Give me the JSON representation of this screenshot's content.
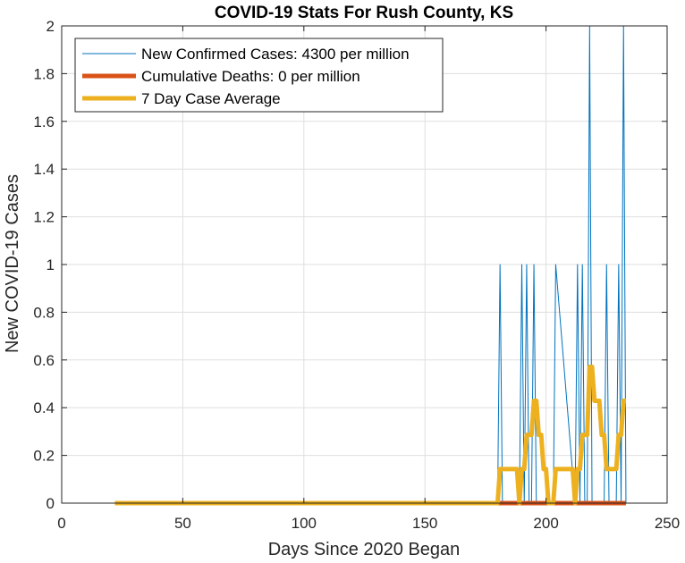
{
  "chart_data": {
    "type": "line",
    "title": "COVID-19 Stats For Rush County, KS",
    "xlabel": "Days Since 2020 Began",
    "ylabel": "New COVID-19 Cases",
    "xlim": [
      0,
      250
    ],
    "ylim": [
      0,
      2
    ],
    "xticks": [
      0,
      50,
      100,
      150,
      200,
      250
    ],
    "yticks": [
      0,
      0.2,
      0.4,
      0.6,
      0.8,
      1,
      1.2,
      1.4,
      1.6,
      1.8,
      2
    ],
    "grid": true,
    "legend_position": "top-left",
    "series": [
      {
        "name": "New Confirmed Cases: 4300 per million",
        "color": "#0072BD",
        "style": "thin",
        "x": [
          180,
          181,
          182,
          189,
          190,
          191,
          192,
          193,
          194,
          195,
          196,
          203,
          204,
          212,
          213,
          214,
          215,
          216,
          217,
          218,
          219,
          224,
          225,
          226,
          229,
          230,
          231,
          232,
          233
        ],
        "y": [
          0,
          1,
          0,
          0,
          1,
          0,
          1,
          0,
          0,
          1,
          0,
          0,
          1,
          0,
          1,
          0,
          1,
          0,
          0,
          2,
          0,
          0,
          1,
          0,
          0,
          1,
          0,
          2,
          0
        ]
      },
      {
        "name": "Cumulative Deaths: 0 per million",
        "color": "#D95319",
        "style": "thick",
        "x": [
          22,
          233
        ],
        "y": [
          0,
          0
        ]
      },
      {
        "name": "7 Day Case Average",
        "color": "#EDB120",
        "style": "thick",
        "x": [
          22,
          180,
          181,
          182,
          186,
          187,
          188,
          189,
          190,
          191,
          192,
          193,
          194,
          195,
          196,
          197,
          198,
          199,
          200,
          201,
          202,
          203,
          204,
          205,
          209,
          210,
          211,
          212,
          213,
          214,
          215,
          216,
          217,
          218,
          219,
          220,
          221,
          222,
          223,
          224,
          225,
          226,
          227,
          228,
          229,
          230,
          231,
          232,
          233
        ],
        "y": [
          0,
          0,
          0.143,
          0.143,
          0.143,
          0.143,
          0.143,
          0,
          0.143,
          0.143,
          0.286,
          0.286,
          0.286,
          0.429,
          0.429,
          0.286,
          0.286,
          0.143,
          0.143,
          0,
          0,
          0,
          0.143,
          0.143,
          0.143,
          0.143,
          0.143,
          0,
          0.143,
          0.143,
          0.286,
          0.286,
          0.286,
          0.571,
          0.571,
          0.429,
          0.429,
          0.429,
          0.286,
          0.286,
          0.143,
          0.143,
          0.143,
          0.143,
          0.143,
          0.286,
          0.286,
          0.429,
          0.429
        ]
      }
    ]
  }
}
